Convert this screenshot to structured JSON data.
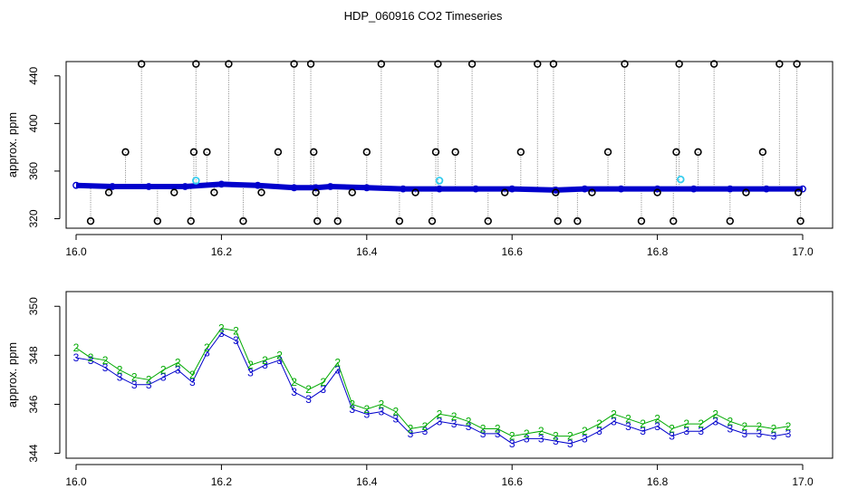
{
  "chart_data": [
    {
      "type": "scatter",
      "title": "HDP_060916  CO2 Timeseries",
      "xlabel": "",
      "ylabel": "approx. ppm",
      "xlim": [
        16.0,
        17.0
      ],
      "ylim": [
        312,
        452
      ],
      "xticks": [
        "16.0",
        "16.2",
        "16.4",
        "16.6",
        "16.8",
        "17.0"
      ],
      "yticks": [
        "320",
        "360",
        "400",
        "440"
      ],
      "grid": false,
      "colors": {
        "main": "#0000cc",
        "flag": "#000000",
        "cyan": "#33ccee",
        "secondary": "#00aa00",
        "drop": "#808080"
      },
      "series": [
        {
          "x": [
            16.0,
            16.05,
            16.1,
            16.15,
            16.2,
            16.25,
            16.3,
            16.33,
            16.35,
            16.4,
            16.45,
            16.5,
            16.55,
            16.6,
            16.66,
            16.7,
            16.75,
            16.8,
            16.85,
            16.9,
            16.95,
            17.0
          ],
          "y": [
            348,
            347,
            347,
            347,
            349,
            348,
            346,
            346,
            347,
            346,
            345,
            345,
            345,
            345,
            344,
            345,
            345,
            345,
            345,
            345,
            345,
            345
          ]
        },
        {
          "x": [
            16.02,
            16.045,
            16.068,
            16.09,
            16.112,
            16.135,
            16.158,
            16.162,
            16.165,
            16.18,
            16.19,
            16.21,
            16.23,
            16.255,
            16.278,
            16.3,
            16.323,
            16.327,
            16.33,
            16.332,
            16.36,
            16.38,
            16.4,
            16.42,
            16.445,
            16.467,
            16.49,
            16.495,
            16.498,
            16.522,
            16.545,
            16.567,
            16.59,
            16.612,
            16.635,
            16.657,
            16.66,
            16.663,
            16.69,
            16.71,
            16.732,
            16.755,
            16.778,
            16.8,
            16.822,
            16.826,
            16.83,
            16.856,
            16.878,
            16.9,
            16.922,
            16.945,
            16.968,
            16.992,
            16.994,
            16.997
          ],
          "y": [
            318,
            342,
            376,
            450,
            318,
            342,
            318,
            376,
            450,
            376,
            342,
            450,
            318,
            342,
            376,
            450,
            450,
            376,
            342,
            318,
            318,
            342,
            376,
            450,
            318,
            342,
            318,
            376,
            450,
            376,
            450,
            318,
            342,
            376,
            450,
            450,
            342,
            318,
            318,
            342,
            376,
            450,
            318,
            342,
            318,
            376,
            450,
            376,
            450,
            318,
            342,
            376,
            450,
            450,
            342,
            318
          ]
        },
        {
          "x": [
            16.165,
            16.5,
            16.832
          ],
          "y": [
            352,
            352,
            353
          ]
        }
      ]
    },
    {
      "type": "scatter",
      "title": "",
      "xlabel": "",
      "ylabel": "approx. ppm",
      "xlim": [
        16.0,
        17.0
      ],
      "ylim": [
        343.8,
        350.6
      ],
      "xticks": [
        "16.0",
        "16.2",
        "16.4",
        "16.6",
        "16.8",
        "17.0"
      ],
      "yticks": [
        "344",
        "346",
        "348",
        "350"
      ],
      "grid": false,
      "series": [
        {
          "marker": "3",
          "color": "#0000cc",
          "x": [
            16.0,
            16.02,
            16.04,
            16.06,
            16.08,
            16.1,
            16.12,
            16.14,
            16.16,
            16.18,
            16.2,
            16.22,
            16.24,
            16.26,
            16.28,
            16.3,
            16.32,
            16.34,
            16.36,
            16.38,
            16.4,
            16.42,
            16.44,
            16.46,
            16.48,
            16.5,
            16.52,
            16.54,
            16.56,
            16.58,
            16.6,
            16.62,
            16.64,
            16.66,
            16.68,
            16.7,
            16.72,
            16.74,
            16.76,
            16.78,
            16.8,
            16.82,
            16.84,
            16.86,
            16.88,
            16.9,
            16.92,
            16.94,
            16.96,
            16.98
          ],
          "y": [
            347.9,
            347.8,
            347.5,
            347.1,
            346.8,
            346.8,
            347.1,
            347.4,
            346.9,
            348.1,
            348.9,
            348.6,
            347.3,
            347.6,
            347.8,
            346.5,
            346.2,
            346.6,
            347.4,
            345.8,
            345.6,
            345.7,
            345.4,
            344.8,
            344.9,
            345.3,
            345.2,
            345.1,
            344.8,
            344.8,
            344.4,
            344.6,
            344.6,
            344.5,
            344.4,
            344.6,
            344.9,
            345.3,
            345.1,
            344.9,
            345.1,
            344.7,
            344.9,
            344.9,
            345.3,
            345.0,
            344.8,
            344.8,
            344.7,
            344.8
          ]
        },
        {
          "marker": "2",
          "color": "#00aa00",
          "x": [
            16.0,
            16.02,
            16.04,
            16.06,
            16.08,
            16.1,
            16.12,
            16.14,
            16.16,
            16.18,
            16.2,
            16.22,
            16.24,
            16.26,
            16.28,
            16.3,
            16.32,
            16.34,
            16.36,
            16.38,
            16.4,
            16.42,
            16.44,
            16.46,
            16.48,
            16.5,
            16.52,
            16.54,
            16.56,
            16.58,
            16.6,
            16.62,
            16.64,
            16.66,
            16.68,
            16.7,
            16.72,
            16.74,
            16.76,
            16.78,
            16.8,
            16.82,
            16.84,
            16.86,
            16.88,
            16.9,
            16.92,
            16.94,
            16.96,
            16.98
          ],
          "y": [
            348.3,
            347.9,
            347.8,
            347.4,
            347.1,
            347.0,
            347.4,
            347.7,
            347.2,
            348.3,
            349.1,
            349.0,
            347.6,
            347.8,
            348.0,
            346.9,
            346.6,
            346.9,
            347.7,
            346.0,
            345.8,
            346.0,
            345.7,
            345.0,
            345.1,
            345.6,
            345.5,
            345.3,
            345.0,
            345.0,
            344.7,
            344.8,
            344.9,
            344.7,
            344.7,
            344.9,
            345.2,
            345.6,
            345.4,
            345.2,
            345.4,
            345.0,
            345.2,
            345.2,
            345.6,
            345.3,
            345.1,
            345.1,
            345.0,
            345.1
          ]
        }
      ]
    }
  ]
}
